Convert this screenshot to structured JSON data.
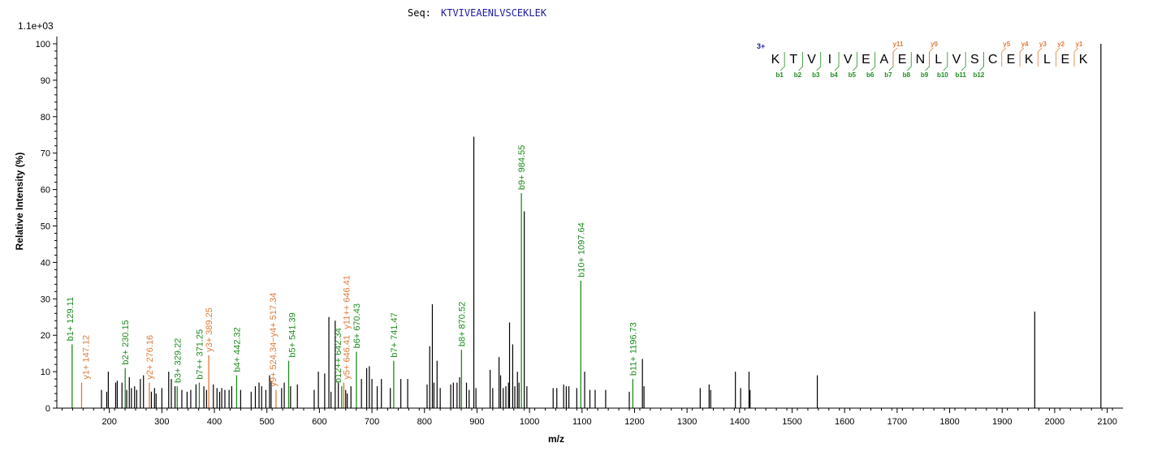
{
  "seq_label": "Seq:",
  "sequence": "KTVIVEAENLVSCEKLEK",
  "charge": "3+",
  "colors": {
    "b": "#1e8c1e",
    "y": "#e07b39",
    "unannotated": "#000000",
    "sequence": "#1a1aa6"
  },
  "b_ion_labels": [
    "b1",
    "b2",
    "b3",
    "b4",
    "b5",
    "b6",
    "b7",
    "b8",
    "b9",
    "b10",
    "b11",
    "b12"
  ],
  "y_ion_labels": [
    "y11",
    "y9",
    "y5",
    "y4",
    "y3",
    "y2",
    "y1"
  ],
  "chart_data": {
    "type": "bar",
    "xlabel": "m/z",
    "ylabel": "Relative   Intensity (%)",
    "scale_label": "1.1e+03",
    "xlim": [
      100,
      2130
    ],
    "ylim": [
      0,
      102
    ],
    "x_ticks": [
      200,
      300,
      400,
      500,
      600,
      700,
      800,
      900,
      1000,
      1100,
      1200,
      1300,
      1400,
      1500,
      1600,
      1700,
      1800,
      1900,
      2000,
      2100
    ],
    "y_ticks": [
      0,
      10,
      20,
      30,
      40,
      50,
      60,
      70,
      80,
      90,
      100
    ],
    "annotated_peaks": [
      {
        "mz": 129.11,
        "intensity": 17.5,
        "label": "b1+ 129.11",
        "ion": "b"
      },
      {
        "mz": 147.12,
        "intensity": 7,
        "label": "y1+ 147.12",
        "ion": "y"
      },
      {
        "mz": 230.15,
        "intensity": 11,
        "label": "b2+ 230.15",
        "ion": "b"
      },
      {
        "mz": 276.16,
        "intensity": 7,
        "label": "y2+ 276.16",
        "ion": "y"
      },
      {
        "mz": 329.22,
        "intensity": 6,
        "label": "b3+ 329.22",
        "ion": "b"
      },
      {
        "mz": 371.25,
        "intensity": 7,
        "label": "b7++ 371.25",
        "ion": "b"
      },
      {
        "mz": 389.25,
        "intensity": 14.5,
        "label": "y3+ 389.25",
        "ion": "y"
      },
      {
        "mz": 442.32,
        "intensity": 9,
        "label": "b4+ 442.32",
        "ion": "b"
      },
      {
        "mz": 517.34,
        "intensity": 5,
        "label": "y9+ 524.34−y4+ 517.34",
        "ion": "y"
      },
      {
        "mz": 541.39,
        "intensity": 13,
        "label": "b5+ 541.39",
        "ion": "b"
      },
      {
        "mz": 642.34,
        "intensity": 6,
        "label": "b12++ 642.34",
        "ion": "b"
      },
      {
        "mz": 646.41,
        "intensity": 7,
        "label": "y5+ 646.41",
        "ion": "y"
      },
      {
        "mz": 646.41,
        "intensity": 7,
        "label": "y11++ 646.41",
        "ion": "y"
      },
      {
        "mz": 670.43,
        "intensity": 15.5,
        "label": "b6+ 670.43",
        "ion": "b"
      },
      {
        "mz": 741.47,
        "intensity": 13,
        "label": "b7+ 741.47",
        "ion": "b"
      },
      {
        "mz": 870.52,
        "intensity": 16,
        "label": "b8+ 870.52",
        "ion": "b"
      },
      {
        "mz": 984.55,
        "intensity": 59,
        "label": "b9+ 984.55",
        "ion": "b"
      },
      {
        "mz": 1097.64,
        "intensity": 35,
        "label": "b10+ 1097.64",
        "ion": "b"
      },
      {
        "mz": 1196.73,
        "intensity": 8,
        "label": "b11+ 1196.73",
        "ion": "b"
      }
    ],
    "peaks": [
      {
        "mz": 185,
        "intensity": 5
      },
      {
        "mz": 195,
        "intensity": 4.5
      },
      {
        "mz": 198,
        "intensity": 10
      },
      {
        "mz": 212,
        "intensity": 7
      },
      {
        "mz": 215,
        "intensity": 7.5
      },
      {
        "mz": 224,
        "intensity": 7
      },
      {
        "mz": 233,
        "intensity": 5
      },
      {
        "mz": 238,
        "intensity": 8.5
      },
      {
        "mz": 242,
        "intensity": 5.5
      },
      {
        "mz": 248,
        "intensity": 6
      },
      {
        "mz": 252,
        "intensity": 5
      },
      {
        "mz": 259,
        "intensity": 8
      },
      {
        "mz": 265,
        "intensity": 9
      },
      {
        "mz": 280,
        "intensity": 4.5
      },
      {
        "mz": 286,
        "intensity": 5.5
      },
      {
        "mz": 289,
        "intensity": 4
      },
      {
        "mz": 300,
        "intensity": 5.5
      },
      {
        "mz": 313,
        "intensity": 10
      },
      {
        "mz": 318,
        "intensity": 8
      },
      {
        "mz": 325,
        "intensity": 6
      },
      {
        "mz": 338,
        "intensity": 5
      },
      {
        "mz": 348,
        "intensity": 4.5
      },
      {
        "mz": 355,
        "intensity": 5
      },
      {
        "mz": 365,
        "intensity": 6.5
      },
      {
        "mz": 380,
        "intensity": 6
      },
      {
        "mz": 385,
        "intensity": 5
      },
      {
        "mz": 398,
        "intensity": 6.5
      },
      {
        "mz": 405,
        "intensity": 5.5
      },
      {
        "mz": 410,
        "intensity": 4.5
      },
      {
        "mz": 414,
        "intensity": 5.5
      },
      {
        "mz": 420,
        "intensity": 5
      },
      {
        "mz": 428,
        "intensity": 5
      },
      {
        "mz": 433,
        "intensity": 6
      },
      {
        "mz": 450,
        "intensity": 5
      },
      {
        "mz": 470,
        "intensity": 4.5
      },
      {
        "mz": 478,
        "intensity": 6
      },
      {
        "mz": 485,
        "intensity": 7
      },
      {
        "mz": 490,
        "intensity": 6
      },
      {
        "mz": 498,
        "intensity": 5
      },
      {
        "mz": 505,
        "intensity": 9
      },
      {
        "mz": 508,
        "intensity": 7.5
      },
      {
        "mz": 528,
        "intensity": 5.5
      },
      {
        "mz": 533,
        "intensity": 7
      },
      {
        "mz": 545,
        "intensity": 6
      },
      {
        "mz": 558,
        "intensity": 6.5
      },
      {
        "mz": 590,
        "intensity": 5
      },
      {
        "mz": 598,
        "intensity": 10
      },
      {
        "mz": 610,
        "intensity": 9.5
      },
      {
        "mz": 618,
        "intensity": 25
      },
      {
        "mz": 622,
        "intensity": 4.5
      },
      {
        "mz": 630,
        "intensity": 24
      },
      {
        "mz": 636,
        "intensity": 7
      },
      {
        "mz": 650,
        "intensity": 5
      },
      {
        "mz": 653,
        "intensity": 4
      },
      {
        "mz": 660,
        "intensity": 6
      },
      {
        "mz": 680,
        "intensity": 8
      },
      {
        "mz": 690,
        "intensity": 11
      },
      {
        "mz": 695,
        "intensity": 11.5
      },
      {
        "mz": 700,
        "intensity": 8
      },
      {
        "mz": 710,
        "intensity": 6
      },
      {
        "mz": 718,
        "intensity": 8
      },
      {
        "mz": 735,
        "intensity": 5.5
      },
      {
        "mz": 755,
        "intensity": 8
      },
      {
        "mz": 768,
        "intensity": 8
      },
      {
        "mz": 805,
        "intensity": 6.5
      },
      {
        "mz": 810,
        "intensity": 17
      },
      {
        "mz": 815,
        "intensity": 28.5
      },
      {
        "mz": 818,
        "intensity": 7
      },
      {
        "mz": 824,
        "intensity": 13
      },
      {
        "mz": 830,
        "intensity": 5.5
      },
      {
        "mz": 850,
        "intensity": 6.5
      },
      {
        "mz": 855,
        "intensity": 7
      },
      {
        "mz": 862,
        "intensity": 7
      },
      {
        "mz": 867,
        "intensity": 8.5
      },
      {
        "mz": 880,
        "intensity": 7
      },
      {
        "mz": 885,
        "intensity": 5
      },
      {
        "mz": 894,
        "intensity": 74.5
      },
      {
        "mz": 898,
        "intensity": 5.5
      },
      {
        "mz": 925,
        "intensity": 10.5
      },
      {
        "mz": 930,
        "intensity": 5.5
      },
      {
        "mz": 942,
        "intensity": 14
      },
      {
        "mz": 945,
        "intensity": 9
      },
      {
        "mz": 950,
        "intensity": 5.5
      },
      {
        "mz": 955,
        "intensity": 6
      },
      {
        "mz": 960,
        "intensity": 7
      },
      {
        "mz": 962,
        "intensity": 23.5
      },
      {
        "mz": 968,
        "intensity": 17.5
      },
      {
        "mz": 972,
        "intensity": 6
      },
      {
        "mz": 977,
        "intensity": 10
      },
      {
        "mz": 980,
        "intensity": 7
      },
      {
        "mz": 990,
        "intensity": 54
      },
      {
        "mz": 995,
        "intensity": 6
      },
      {
        "mz": 1045,
        "intensity": 5.5
      },
      {
        "mz": 1052,
        "intensity": 5.5
      },
      {
        "mz": 1065,
        "intensity": 6.5
      },
      {
        "mz": 1070,
        "intensity": 6
      },
      {
        "mz": 1075,
        "intensity": 6
      },
      {
        "mz": 1090,
        "intensity": 5.5
      },
      {
        "mz": 1105,
        "intensity": 10
      },
      {
        "mz": 1115,
        "intensity": 5
      },
      {
        "mz": 1125,
        "intensity": 5
      },
      {
        "mz": 1145,
        "intensity": 5
      },
      {
        "mz": 1190,
        "intensity": 4.5
      },
      {
        "mz": 1215,
        "intensity": 13.5
      },
      {
        "mz": 1218,
        "intensity": 6
      },
      {
        "mz": 1325,
        "intensity": 5.5
      },
      {
        "mz": 1342,
        "intensity": 6.5
      },
      {
        "mz": 1345,
        "intensity": 5
      },
      {
        "mz": 1392,
        "intensity": 10
      },
      {
        "mz": 1402,
        "intensity": 5.5
      },
      {
        "mz": 1418,
        "intensity": 10
      },
      {
        "mz": 1420,
        "intensity": 5
      },
      {
        "mz": 1548,
        "intensity": 9
      },
      {
        "mz": 1962,
        "intensity": 26.5
      },
      {
        "mz": 2088,
        "intensity": 100
      }
    ]
  }
}
